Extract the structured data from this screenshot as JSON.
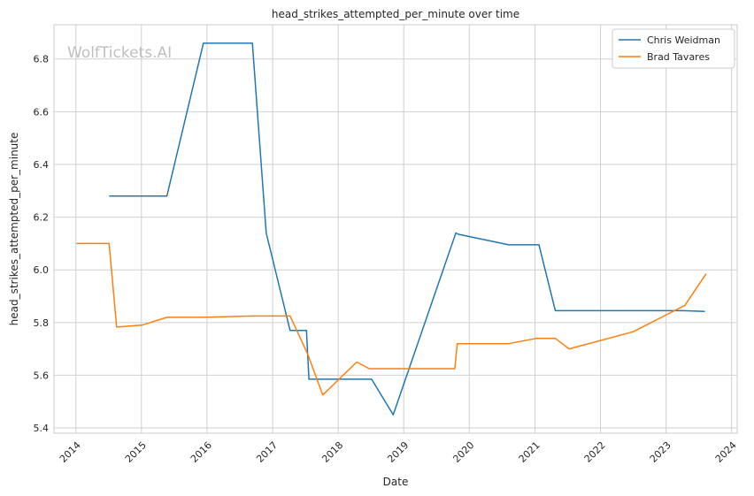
{
  "watermark": "WolfTickets.AI",
  "chart_data": {
    "type": "line",
    "title": "head_strikes_attempted_per_minute over time",
    "xlabel": "Date",
    "ylabel": "head_strikes_attempted_per_minute",
    "xlim": [
      "2013-09-01",
      "2024-02-01"
    ],
    "ylim": [
      5.38,
      6.93
    ],
    "x_ticks": [
      "2014",
      "2015",
      "2016",
      "2017",
      "2018",
      "2019",
      "2020",
      "2021",
      "2022",
      "2023",
      "2024"
    ],
    "y_ticks": [
      5.4,
      5.6,
      5.8,
      6.0,
      6.2,
      6.4,
      6.6,
      6.8
    ],
    "y_tick_labels": [
      "5.4",
      "5.6",
      "5.8",
      "6.0",
      "6.2",
      "6.4",
      "6.6",
      "6.8"
    ],
    "grid": true,
    "legend_position": "upper-right",
    "series": [
      {
        "name": "Chris Weidman",
        "color": "#1f77b4",
        "points": [
          [
            "2014-07-05",
            6.28
          ],
          [
            "2015-05-23",
            6.28
          ],
          [
            "2015-12-12",
            6.86
          ],
          [
            "2016-09-10",
            6.86
          ],
          [
            "2016-11-26",
            6.14
          ],
          [
            "2017-04-08",
            5.77
          ],
          [
            "2017-07-08",
            5.77
          ],
          [
            "2017-07-22",
            5.585
          ],
          [
            "2018-07-06",
            5.585
          ],
          [
            "2018-11-03",
            5.45
          ],
          [
            "2019-10-18",
            6.14
          ],
          [
            "2019-11-02",
            6.135
          ],
          [
            "2020-08-08",
            6.095
          ],
          [
            "2021-01-23",
            6.095
          ],
          [
            "2021-04-24",
            5.845
          ],
          [
            "2023-04-08",
            5.845
          ],
          [
            "2023-08-05",
            5.842
          ]
        ]
      },
      {
        "name": "Brad Tavares",
        "color": "#ff7f0e",
        "points": [
          [
            "2014-01-04",
            6.1
          ],
          [
            "2014-07-05",
            6.1
          ],
          [
            "2014-08-16",
            5.783
          ],
          [
            "2015-01-03",
            5.79
          ],
          [
            "2015-05-23",
            5.82
          ],
          [
            "2015-12-12",
            5.82
          ],
          [
            "2016-09-10",
            5.825
          ],
          [
            "2017-04-08",
            5.825
          ],
          [
            "2017-07-15",
            5.68
          ],
          [
            "2017-10-07",
            5.525
          ],
          [
            "2018-04-14",
            5.65
          ],
          [
            "2018-06-23",
            5.625
          ],
          [
            "2019-10-12",
            5.625
          ],
          [
            "2019-10-26",
            5.72
          ],
          [
            "2020-08-08",
            5.72
          ],
          [
            "2021-01-09",
            5.74
          ],
          [
            "2021-04-24",
            5.74
          ],
          [
            "2021-07-10",
            5.7
          ],
          [
            "2022-07-02",
            5.765
          ],
          [
            "2023-04-15",
            5.865
          ],
          [
            "2023-08-12",
            5.985
          ]
        ]
      }
    ]
  }
}
